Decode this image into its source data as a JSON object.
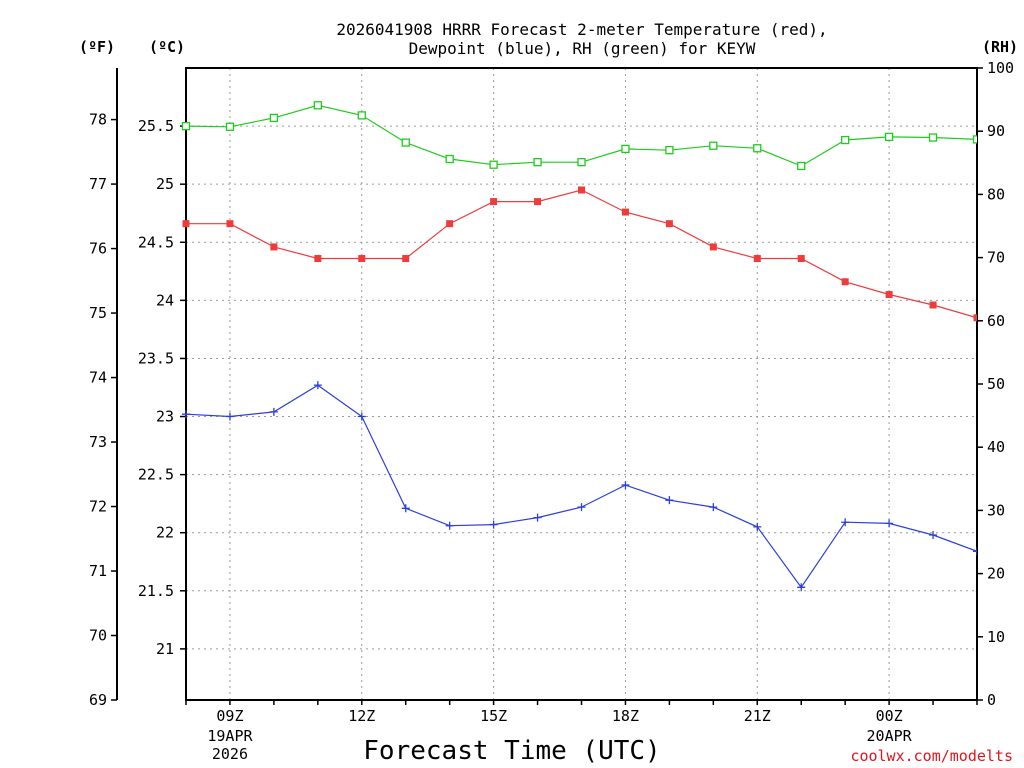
{
  "chart_data": {
    "type": "line",
    "title_lines": [
      "2026041908 HRRR Forecast 2-meter Temperature (red),",
      "Dewpoint (blue), RH (green) for KEYW"
    ],
    "xlabel": "Forecast Time (UTC)",
    "credit": "coolwx.com/modelts",
    "x_hours": [
      8,
      9,
      10,
      11,
      12,
      13,
      14,
      15,
      16,
      17,
      18,
      19,
      20,
      21,
      22,
      23,
      24,
      25,
      26
    ],
    "x_range": [
      8,
      26
    ],
    "x_ticks": [
      {
        "hour": 9,
        "label": "09Z"
      },
      {
        "hour": 12,
        "label": "12Z"
      },
      {
        "hour": 15,
        "label": "15Z"
      },
      {
        "hour": 18,
        "label": "18Z"
      },
      {
        "hour": 21,
        "label": "21Z"
      },
      {
        "hour": 24,
        "label": "00Z"
      }
    ],
    "date_labels": [
      {
        "hour": 9,
        "lines": [
          "19APR",
          "2026"
        ]
      },
      {
        "hour": 24,
        "lines": [
          "20APR"
        ]
      }
    ],
    "axes": {
      "fahrenheit": {
        "unit": "(ºF)",
        "range": [
          69,
          78.8
        ],
        "ticks": [
          69,
          70,
          71,
          72,
          73,
          74,
          75,
          76,
          77,
          78
        ]
      },
      "celsius": {
        "unit": "(ºC)",
        "range": [
          20.56,
          26
        ],
        "ticks": [
          21,
          21.5,
          22,
          22.5,
          23,
          23.5,
          24,
          24.5,
          25,
          25.5
        ]
      },
      "rh": {
        "unit": "(RH)",
        "range": [
          0,
          100
        ],
        "ticks": [
          0,
          10,
          20,
          30,
          40,
          50,
          60,
          70,
          80,
          90,
          100
        ]
      }
    },
    "series": [
      {
        "name": "Temperature",
        "axis": "celsius",
        "color": "#ee3b3b",
        "marker": "filled-square",
        "values": [
          24.66,
          24.66,
          24.46,
          24.36,
          24.36,
          24.36,
          24.66,
          24.85,
          24.85,
          24.95,
          24.76,
          24.66,
          24.46,
          24.36,
          24.36,
          24.16,
          24.05,
          23.96,
          23.85
        ]
      },
      {
        "name": "Dewpoint",
        "axis": "celsius",
        "color": "#2b3fdc",
        "marker": "plus",
        "values": [
          23.02,
          23.0,
          23.04,
          23.27,
          23.0,
          22.21,
          22.06,
          22.07,
          22.13,
          22.22,
          22.41,
          22.28,
          22.22,
          22.05,
          21.53,
          22.09,
          22.08,
          21.98,
          21.84
        ]
      },
      {
        "name": "RH",
        "axis": "rh",
        "color": "#1ecc1e",
        "marker": "open-square",
        "values": [
          90.8,
          90.7,
          92.1,
          94.1,
          92.5,
          88.2,
          85.6,
          84.7,
          85.1,
          85.1,
          87.2,
          87.0,
          87.7,
          87.3,
          84.5,
          88.6,
          89.1,
          89.0,
          88.7
        ]
      }
    ]
  }
}
